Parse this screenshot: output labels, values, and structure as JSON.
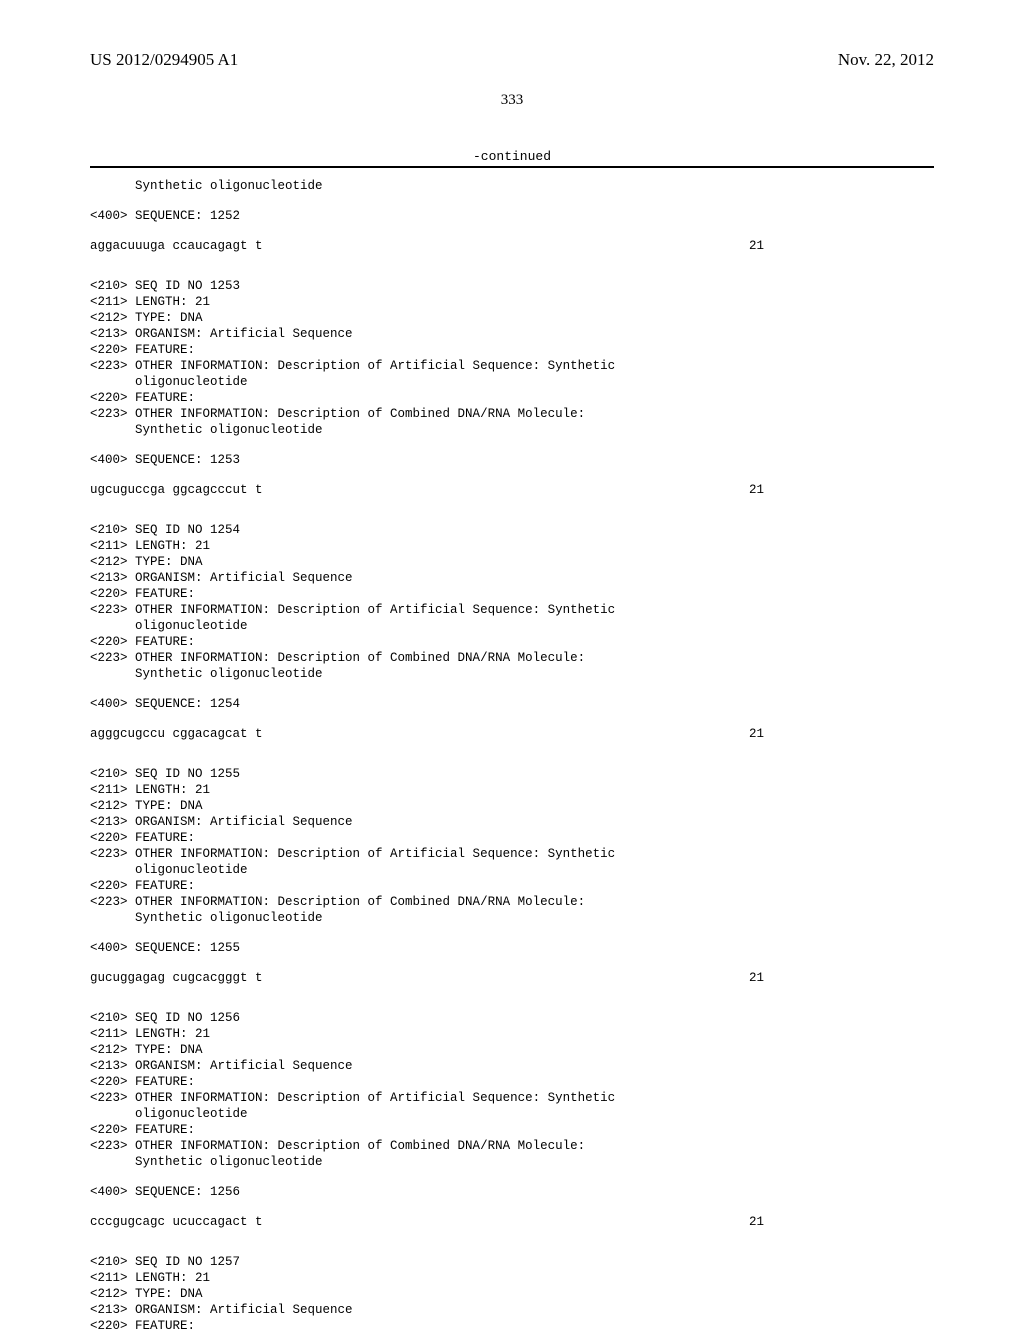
{
  "header": {
    "pub_number": "US 2012/0294905 A1",
    "pub_date": "Nov. 22, 2012"
  },
  "page_number": "333",
  "continued_label": "-continued",
  "lead_in": "      Synthetic oligonucleotide",
  "blocks": [
    {
      "pre": "<400> SEQUENCE: 1252",
      "seq": "aggacuuuga ccaucagagt t",
      "len": "21"
    },
    {
      "meta": "<210> SEQ ID NO 1253\n<211> LENGTH: 21\n<212> TYPE: DNA\n<213> ORGANISM: Artificial Sequence\n<220> FEATURE:\n<223> OTHER INFORMATION: Description of Artificial Sequence: Synthetic\n      oligonucleotide\n<220> FEATURE:\n<223> OTHER INFORMATION: Description of Combined DNA/RNA Molecule:\n      Synthetic oligonucleotide",
      "pre": "<400> SEQUENCE: 1253",
      "seq": "ugcuguccga ggcagcccut t",
      "len": "21"
    },
    {
      "meta": "<210> SEQ ID NO 1254\n<211> LENGTH: 21\n<212> TYPE: DNA\n<213> ORGANISM: Artificial Sequence\n<220> FEATURE:\n<223> OTHER INFORMATION: Description of Artificial Sequence: Synthetic\n      oligonucleotide\n<220> FEATURE:\n<223> OTHER INFORMATION: Description of Combined DNA/RNA Molecule:\n      Synthetic oligonucleotide",
      "pre": "<400> SEQUENCE: 1254",
      "seq": "agggcugccu cggacagcat t",
      "len": "21"
    },
    {
      "meta": "<210> SEQ ID NO 1255\n<211> LENGTH: 21\n<212> TYPE: DNA\n<213> ORGANISM: Artificial Sequence\n<220> FEATURE:\n<223> OTHER INFORMATION: Description of Artificial Sequence: Synthetic\n      oligonucleotide\n<220> FEATURE:\n<223> OTHER INFORMATION: Description of Combined DNA/RNA Molecule:\n      Synthetic oligonucleotide",
      "pre": "<400> SEQUENCE: 1255",
      "seq": "gucuggagag cugcacgggt t",
      "len": "21"
    },
    {
      "meta": "<210> SEQ ID NO 1256\n<211> LENGTH: 21\n<212> TYPE: DNA\n<213> ORGANISM: Artificial Sequence\n<220> FEATURE:\n<223> OTHER INFORMATION: Description of Artificial Sequence: Synthetic\n      oligonucleotide\n<220> FEATURE:\n<223> OTHER INFORMATION: Description of Combined DNA/RNA Molecule:\n      Synthetic oligonucleotide",
      "pre": "<400> SEQUENCE: 1256",
      "seq": "cccgugcagc ucuccagact t",
      "len": "21"
    },
    {
      "meta": "<210> SEQ ID NO 1257\n<211> LENGTH: 21\n<212> TYPE: DNA\n<213> ORGANISM: Artificial Sequence\n<220> FEATURE:"
    }
  ]
}
